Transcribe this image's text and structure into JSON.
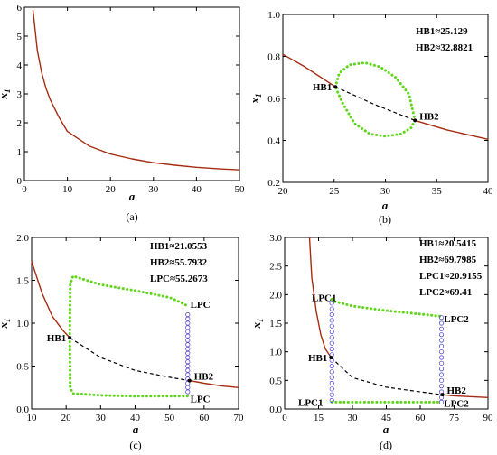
{
  "chart_data": [
    {
      "type": "line",
      "panel_label": "(a)",
      "xlabel": "a",
      "ylabel_main": "x",
      "ylabel_sub": "1",
      "xlim": [
        0,
        50
      ],
      "ylim": [
        0,
        6
      ],
      "xticks": [
        "0",
        "10",
        "20",
        "30",
        "40",
        "50"
      ],
      "yticks": [
        "0",
        "1",
        "2",
        "3",
        "4",
        "5",
        "6"
      ],
      "series": [
        {
          "style": "solid-red",
          "x": [
            2,
            3,
            4,
            5,
            6,
            8,
            10,
            15,
            20,
            25,
            30,
            35,
            40,
            45,
            50
          ],
          "y": [
            5.9,
            4.5,
            3.75,
            3.2,
            2.8,
            2.2,
            1.7,
            1.2,
            0.92,
            0.75,
            0.62,
            0.53,
            0.46,
            0.41,
            0.37
          ]
        }
      ],
      "annotations": []
    },
    {
      "type": "line",
      "panel_label": "(b)",
      "xlabel": "a",
      "ylabel_main": "x",
      "ylabel_sub": "1",
      "xlim": [
        20,
        40
      ],
      "ylim": [
        0.2,
        1.0
      ],
      "xticks": [
        "20",
        "25",
        "30",
        "35",
        "40"
      ],
      "yticks": [
        "0.2",
        "0.4",
        "0.6",
        "0.8",
        "1.0"
      ],
      "series": [
        {
          "style": "solid-red",
          "x": [
            20,
            22,
            25.13
          ],
          "y": [
            0.81,
            0.755,
            0.655
          ]
        },
        {
          "style": "dashed-black",
          "x": [
            25.13,
            29,
            32.88
          ],
          "y": [
            0.655,
            0.57,
            0.495
          ]
        },
        {
          "style": "solid-red",
          "x": [
            32.88,
            36,
            40
          ],
          "y": [
            0.495,
            0.45,
            0.405
          ]
        },
        {
          "style": "green-dots",
          "x": [
            25.13,
            25.5,
            26.5,
            28,
            29.5,
            31,
            32.3,
            32.88,
            32.5,
            31.5,
            30,
            28.5,
            27,
            25.8,
            25.13
          ],
          "y": [
            0.655,
            0.72,
            0.76,
            0.77,
            0.75,
            0.7,
            0.62,
            0.495,
            0.46,
            0.43,
            0.42,
            0.43,
            0.48,
            0.58,
            0.655
          ]
        }
      ],
      "points": [
        {
          "x": 25.13,
          "y": 0.655,
          "label": "HB1"
        },
        {
          "x": 32.88,
          "y": 0.495,
          "label": "HB2"
        }
      ],
      "annotations": [
        "HB1≈25.129",
        "HB2≈32.8821"
      ]
    },
    {
      "type": "line",
      "panel_label": "(c)",
      "xlabel": "a",
      "ylabel_main": "x",
      "ylabel_sub": "1",
      "xlim": [
        10,
        70
      ],
      "ylim": [
        0,
        2.0
      ],
      "xticks": [
        "10",
        "20",
        "30",
        "40",
        "50",
        "60",
        "70"
      ],
      "yticks": [
        "0.0",
        "0.5",
        "1.0",
        "1.5",
        "2.0"
      ],
      "series": [
        {
          "style": "solid-red",
          "x": [
            10,
            13,
            16,
            19,
            21.06
          ],
          "y": [
            1.72,
            1.35,
            1.08,
            0.92,
            0.83
          ]
        },
        {
          "style": "dashed-black",
          "x": [
            21.06,
            30,
            40,
            50,
            55.79
          ],
          "y": [
            0.83,
            0.6,
            0.45,
            0.37,
            0.33
          ]
        },
        {
          "style": "solid-red",
          "x": [
            55.79,
            60,
            65,
            70
          ],
          "y": [
            0.33,
            0.3,
            0.27,
            0.25
          ]
        },
        {
          "style": "green-dots",
          "x": [
            21.06,
            21.2,
            22,
            30,
            40,
            50,
            54.5,
            55.27
          ],
          "y": [
            0.83,
            1.45,
            1.55,
            1.45,
            1.38,
            1.3,
            1.22,
            1.18
          ]
        },
        {
          "style": "green-dots",
          "x": [
            21.06,
            21.2,
            22,
            30,
            40,
            50,
            54.5,
            55.27
          ],
          "y": [
            0.83,
            0.25,
            0.18,
            0.16,
            0.15,
            0.15,
            0.15,
            0.15
          ]
        },
        {
          "style": "blue-circles",
          "x": [
            55.27,
            55.27,
            55.27,
            55.27,
            55.27,
            55.27,
            55.27,
            55.27,
            55.27,
            55.27,
            55.27,
            55.27,
            55.27,
            55.27,
            55.27,
            55.27,
            55.27,
            55.27,
            55.27
          ],
          "y": [
            0.2,
            0.25,
            0.3,
            0.35,
            0.4,
            0.45,
            0.5,
            0.55,
            0.6,
            0.65,
            0.7,
            0.75,
            0.8,
            0.85,
            0.9,
            0.95,
            1.0,
            1.05,
            1.1
          ]
        }
      ],
      "points": [
        {
          "x": 21.06,
          "y": 0.83,
          "label": "HB1"
        },
        {
          "x": 55.79,
          "y": 0.33,
          "label": "HB2"
        }
      ],
      "labels": [
        {
          "x": 56,
          "y": 1.22,
          "text": "LPC"
        },
        {
          "x": 56,
          "y": 0.12,
          "text": "LPC"
        }
      ],
      "annotations": [
        "HB1≈21.0553",
        "HB2≈55.7932",
        "LPC≈55.2673"
      ]
    },
    {
      "type": "line",
      "panel_label": "(d)",
      "xlabel": "a",
      "ylabel_main": "x",
      "ylabel_sub": "1",
      "xlim": [
        0,
        90
      ],
      "ylim": [
        0,
        3.0
      ],
      "xticks": [
        "0",
        "15",
        "30",
        "45",
        "60",
        "75",
        "90"
      ],
      "yticks": [
        "0.0",
        "0.5",
        "1.0",
        "1.5",
        "2.0",
        "2.5",
        "3.0"
      ],
      "series": [
        {
          "style": "solid-red",
          "x": [
            11,
            12,
            14,
            16,
            18,
            20.54
          ],
          "y": [
            3.0,
            2.3,
            1.7,
            1.3,
            1.05,
            0.9
          ]
        },
        {
          "style": "dashed-black",
          "x": [
            20.54,
            30,
            45,
            60,
            69.8
          ],
          "y": [
            0.9,
            0.55,
            0.38,
            0.3,
            0.25
          ]
        },
        {
          "style": "solid-red",
          "x": [
            69.8,
            75,
            80,
            90
          ],
          "y": [
            0.25,
            0.23,
            0.22,
            0.2
          ]
        },
        {
          "style": "green-dots",
          "x": [
            20.9,
            22,
            30,
            45,
            60,
            69.41
          ],
          "y": [
            1.92,
            1.88,
            1.8,
            1.72,
            1.66,
            1.62
          ]
        },
        {
          "style": "green-dots",
          "x": [
            20.9,
            22,
            30,
            45,
            60,
            69.41
          ],
          "y": [
            0.12,
            0.12,
            0.12,
            0.12,
            0.12,
            0.12
          ]
        },
        {
          "style": "blue-circles",
          "x": [
            20.9,
            20.9,
            20.9,
            20.9,
            20.9,
            20.9,
            20.9,
            20.9,
            20.9,
            20.9,
            20.9,
            20.9,
            20.9,
            20.9,
            20.9,
            20.9,
            20.9,
            20.9
          ],
          "y": [
            0.15,
            0.25,
            0.35,
            0.45,
            0.55,
            0.65,
            0.75,
            0.85,
            0.95,
            1.05,
            1.15,
            1.25,
            1.35,
            1.45,
            1.55,
            1.65,
            1.75,
            1.85
          ]
        },
        {
          "style": "blue-circles",
          "x": [
            69.41,
            69.41,
            69.41,
            69.41,
            69.41,
            69.41,
            69.41,
            69.41,
            69.41,
            69.41,
            69.41,
            69.41,
            69.41,
            69.41,
            69.41,
            69.41
          ],
          "y": [
            0.12,
            0.2,
            0.3,
            0.4,
            0.5,
            0.6,
            0.7,
            0.8,
            0.9,
            1.0,
            1.1,
            1.2,
            1.3,
            1.4,
            1.5,
            1.6
          ]
        }
      ],
      "points": [
        {
          "x": 20.54,
          "y": 0.9,
          "label": "HB1"
        },
        {
          "x": 69.8,
          "y": 0.25,
          "label": "HB2"
        }
      ],
      "labels": [
        {
          "x": 12,
          "y": 1.95,
          "text": "LPC1"
        },
        {
          "x": 70.5,
          "y": 1.58,
          "text": "LPC2"
        },
        {
          "x": 6,
          "y": 0.12,
          "text": "LPC1"
        },
        {
          "x": 70.5,
          "y": 0.1,
          "text": "LPC2"
        }
      ],
      "annotations": [
        "HB1≈20.5415",
        "HB2≈69.7985",
        "LPC1≈20.9155",
        "LPC2≈69.41"
      ]
    }
  ]
}
